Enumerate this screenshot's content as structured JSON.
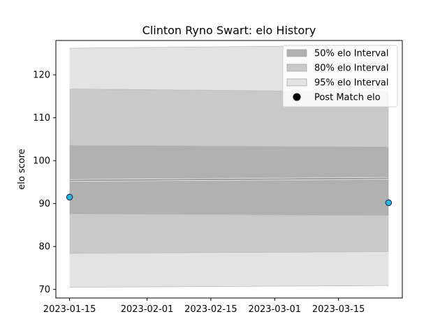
{
  "chart_data": {
    "type": "line",
    "title": "Clinton Ryno Swart: elo History",
    "xlabel": "",
    "ylabel": "elo score",
    "x": [
      "2023-01-15",
      "2023-03-26"
    ],
    "xlim": [
      "2023-01-12",
      "2023-03-29"
    ],
    "ylim": [
      68,
      128
    ],
    "xticks": [
      "2023-01-15",
      "2023-02-01",
      "2023-02-15",
      "2023-03-01",
      "2023-03-15"
    ],
    "yticks": [
      70,
      80,
      90,
      100,
      110,
      120
    ],
    "mean_line": {
      "values": [
        95.4,
        95.9
      ],
      "color": "#808080"
    },
    "bands": [
      {
        "name": "95% elo Interval",
        "lower": [
          70.5,
          70.9
        ],
        "upper": [
          126.2,
          126.9
        ],
        "color": "#e3e3e3"
      },
      {
        "name": "80% elo Interval",
        "lower": [
          78.4,
          78.8
        ],
        "upper": [
          116.7,
          116.0
        ],
        "color": "#c9c9c9"
      },
      {
        "name": "50% elo Interval",
        "lower": [
          87.6,
          87.2
        ],
        "upper": [
          103.6,
          103.2
        ],
        "color": "#b0b0b0"
      }
    ],
    "points": {
      "name": "Post Match elo",
      "x": [
        "2023-01-15",
        "2023-03-26"
      ],
      "values": [
        91.5,
        90.2
      ],
      "color": "#29b6e0",
      "edge_color": "#1a1a4d"
    },
    "legend": {
      "placement": "top-right",
      "entries": [
        {
          "label": "50% elo Interval",
          "kind": "band",
          "color": "#b0b0b0"
        },
        {
          "label": "80% elo Interval",
          "kind": "band",
          "color": "#c9c9c9"
        },
        {
          "label": "95% elo Interval",
          "kind": "band",
          "color": "#e3e3e3"
        },
        {
          "label": "Post Match elo",
          "kind": "marker",
          "color": "#000000"
        }
      ]
    },
    "grid": false
  }
}
